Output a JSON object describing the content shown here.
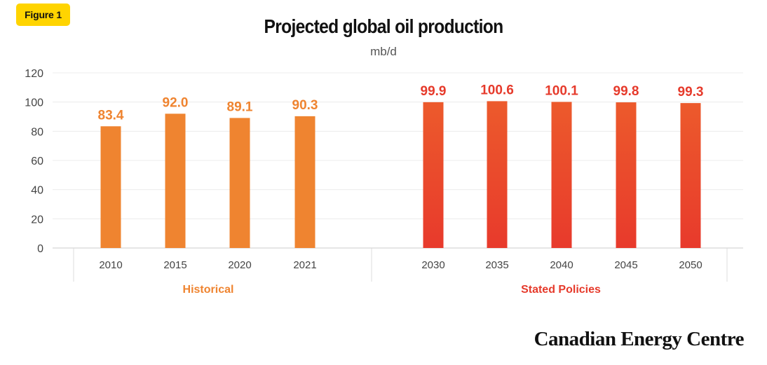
{
  "badge": "Figure 1",
  "chart_data": {
    "type": "bar",
    "title": "Projected global oil production",
    "subtitle": "mb/d",
    "ylim": [
      0,
      120
    ],
    "yticks": [
      0,
      20,
      40,
      60,
      80,
      100,
      120
    ],
    "grid": true,
    "categories": [
      "2010",
      "2015",
      "2020",
      "2021",
      "2030",
      "2035",
      "2040",
      "2045",
      "2050"
    ],
    "values": [
      83.4,
      92.0,
      89.1,
      90.3,
      99.9,
      100.6,
      100.1,
      99.8,
      99.3
    ],
    "value_labels": [
      "83.4",
      "92.0",
      "89.1",
      "90.3",
      "99.9",
      "100.6",
      "100.1",
      "99.8",
      "99.3"
    ],
    "groups": [
      {
        "name": "Historical",
        "categories": [
          "2010",
          "2015",
          "2020",
          "2021"
        ],
        "color": "#EF8430",
        "color_bottom": "#EF8430",
        "label_color": "#EF8430"
      },
      {
        "name": "Stated Policies",
        "categories": [
          "2030",
          "2035",
          "2040",
          "2045",
          "2050"
        ],
        "color": "#EC5A2C",
        "color_bottom": "#E83A2C",
        "label_color": "#E63A2B"
      }
    ]
  },
  "brand": "Canadian Energy Centre"
}
